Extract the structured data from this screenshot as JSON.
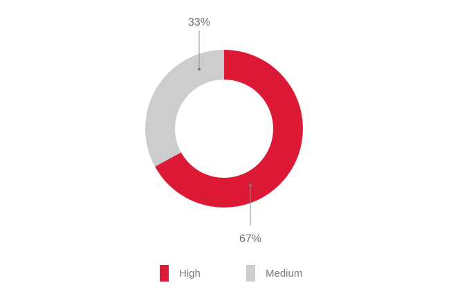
{
  "chart_data": {
    "type": "pie",
    "donut": true,
    "categories": [
      "High",
      "Medium"
    ],
    "values": [
      67,
      33
    ],
    "data_labels": [
      "67%",
      "33%"
    ],
    "colors": [
      "#dc1a35",
      "#cdcccf"
    ],
    "legend": {
      "position": "bottom",
      "items": [
        {
          "label": "High",
          "color": "#dc1a35"
        },
        {
          "label": "Medium",
          "color": "#cdcccf"
        }
      ]
    }
  }
}
